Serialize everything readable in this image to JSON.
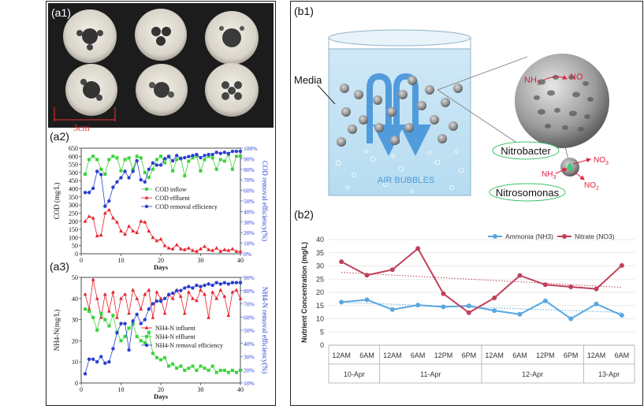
{
  "labels": {
    "a1": "(a1)",
    "a2": "(a2)",
    "a3": "(a3)",
    "b1": "(b1)",
    "b2": "(b2)",
    "scale": "3cm"
  },
  "schematic": {
    "media": "Media",
    "air_bubbles": "AIR BUBBLES",
    "nh3": "NH",
    "nh3_sub": "3",
    "no_big": "NO",
    "nitrobacter": "Nitrobacter",
    "nitrosomonas": "Nitrosomonas",
    "nh3_small": "NH",
    "nh3_small_sub": "3",
    "no3": "NO",
    "no3_sub": "3",
    "no2": "NO",
    "no2_sub": "2"
  },
  "chart_data": [
    {
      "id": "a2",
      "type": "line",
      "xlabel": "Days",
      "ylabel": "COD (mg/L)",
      "y2label": "COD removal efficiency(%)",
      "xlim": [
        0,
        40
      ],
      "ylim": [
        0,
        650
      ],
      "y2lim": [
        0,
        100
      ],
      "xticks": [
        "0",
        "10",
        "20",
        "30",
        "40"
      ],
      "yticks": [
        "0",
        "50",
        "100",
        "150",
        "200",
        "250",
        "300",
        "350",
        "400",
        "450",
        "500",
        "550",
        "600",
        "650"
      ],
      "y2ticks": [
        "0%",
        "10%",
        "20%",
        "30%",
        "40%",
        "50%",
        "60%",
        "70%",
        "80%",
        "90%",
        "100%"
      ],
      "legend": "center",
      "series": [
        {
          "name": "COD inflow",
          "axis": "left",
          "color": "#39d339",
          "marker": "square",
          "x": [
            1,
            2,
            3,
            4,
            5,
            6,
            7,
            8,
            9,
            10,
            11,
            12,
            13,
            14,
            15,
            16,
            17,
            18,
            19,
            20,
            21,
            22,
            23,
            24,
            25,
            26,
            27,
            28,
            29,
            30,
            31,
            32,
            33,
            34,
            35,
            36,
            37,
            38,
            39,
            40
          ],
          "y": [
            490,
            580,
            600,
            580,
            520,
            490,
            580,
            600,
            590,
            510,
            580,
            590,
            520,
            600,
            590,
            500,
            470,
            520,
            580,
            600,
            560,
            600,
            510,
            580,
            590,
            480,
            570,
            590,
            600,
            510,
            580,
            600,
            590,
            520,
            580,
            570,
            610,
            520,
            600,
            600
          ]
        },
        {
          "name": "COD effluent",
          "axis": "left",
          "color": "#e8212b",
          "marker": "triangle",
          "x": [
            1,
            2,
            3,
            4,
            5,
            6,
            7,
            8,
            9,
            10,
            11,
            12,
            13,
            14,
            15,
            16,
            17,
            18,
            19,
            20,
            21,
            22,
            23,
            24,
            25,
            26,
            27,
            28,
            29,
            30,
            31,
            32,
            33,
            34,
            35,
            36,
            37,
            38,
            39,
            40
          ],
          "y": [
            200,
            230,
            220,
            110,
            115,
            250,
            270,
            220,
            195,
            140,
            120,
            170,
            140,
            130,
            200,
            195,
            140,
            100,
            80,
            90,
            50,
            35,
            30,
            55,
            30,
            25,
            35,
            20,
            15,
            30,
            45,
            25,
            20,
            35,
            15,
            25,
            20,
            30,
            15,
            15
          ]
        },
        {
          "name": "COD removal efficiency",
          "axis": "right",
          "color": "#2a3fd1",
          "marker": "circle",
          "x": [
            1,
            2,
            3,
            4,
            5,
            6,
            7,
            8,
            9,
            10,
            11,
            12,
            13,
            14,
            15,
            16,
            17,
            18,
            19,
            20,
            21,
            22,
            23,
            24,
            25,
            26,
            27,
            28,
            29,
            30,
            31,
            32,
            33,
            34,
            35,
            36,
            37,
            38,
            39,
            40
          ],
          "y": [
            58,
            58,
            62,
            78,
            75,
            45,
            50,
            63,
            68,
            72,
            78,
            72,
            78,
            88,
            70,
            68,
            80,
            86,
            84,
            84,
            90,
            92,
            88,
            93,
            90,
            91,
            92,
            93,
            94,
            91,
            93,
            94,
            94,
            96,
            95,
            96,
            95,
            97,
            97,
            97
          ]
        }
      ]
    },
    {
      "id": "a3",
      "type": "line",
      "xlabel": "Days",
      "ylabel": "NH4-N(mg/L)",
      "y2label": "NH4-N removal efficiency(%)",
      "xlim": [
        0,
        40
      ],
      "ylim": [
        0,
        50
      ],
      "y2lim": [
        10,
        90
      ],
      "xticks": [
        "0",
        "10",
        "20",
        "30",
        "40"
      ],
      "yticks": [
        "0",
        "10",
        "20",
        "30",
        "40",
        "50"
      ],
      "y2ticks": [
        "10%",
        "20%",
        "30%",
        "40%",
        "50%",
        "60%",
        "70%",
        "80%",
        "90%"
      ],
      "legend": "center",
      "series": [
        {
          "name": "NH4-N influent",
          "axis": "left",
          "color": "#e8212b",
          "marker": "triangle",
          "x": [
            1,
            2,
            3,
            4,
            5,
            6,
            7,
            8,
            9,
            10,
            11,
            12,
            13,
            14,
            15,
            16,
            17,
            18,
            19,
            20,
            21,
            22,
            23,
            24,
            25,
            26,
            27,
            28,
            29,
            30,
            31,
            32,
            33,
            34,
            35,
            36,
            37,
            38,
            39,
            40
          ],
          "y": [
            42,
            35,
            49,
            40,
            31,
            42,
            34,
            43,
            31,
            40,
            42,
            33,
            44,
            40,
            35,
            42,
            44,
            31,
            43,
            40,
            33,
            42,
            40,
            44,
            41,
            33,
            43,
            40,
            39,
            44,
            42,
            31,
            43,
            40,
            44,
            41,
            32,
            43,
            44,
            40
          ]
        },
        {
          "name": "NH4-N effluent",
          "axis": "left",
          "color": "#39d339",
          "marker": "square",
          "x": [
            1,
            2,
            3,
            4,
            5,
            6,
            7,
            8,
            9,
            10,
            11,
            12,
            13,
            14,
            15,
            16,
            17,
            18,
            19,
            20,
            21,
            22,
            23,
            24,
            25,
            26,
            27,
            28,
            29,
            30,
            31,
            32,
            33,
            34,
            35,
            36,
            37,
            38,
            39,
            40
          ],
          "y": [
            35,
            34,
            31,
            25,
            33,
            30,
            27,
            32,
            24,
            20,
            22,
            26,
            28,
            22,
            20,
            19,
            24,
            14,
            12,
            11,
            12,
            8,
            9,
            7,
            8,
            6,
            7,
            8,
            6,
            8,
            7,
            6,
            8,
            5,
            6,
            6,
            5,
            6,
            5,
            6
          ]
        },
        {
          "name": "NH4-N removal efficiency",
          "axis": "right",
          "color": "#2a3fd1",
          "marker": "circle",
          "x": [
            1,
            2,
            3,
            4,
            5,
            6,
            7,
            8,
            9,
            10,
            11,
            12,
            13,
            14,
            15,
            16,
            17,
            18,
            19,
            20,
            21,
            22,
            23,
            24,
            25,
            26,
            27,
            28,
            29,
            30,
            31,
            32,
            33,
            34,
            35,
            36,
            37,
            38,
            39,
            40
          ],
          "y": [
            17,
            28,
            28,
            26,
            30,
            25,
            26,
            36,
            48,
            55,
            55,
            35,
            57,
            62,
            55,
            58,
            66,
            70,
            72,
            72,
            74,
            77,
            78,
            80,
            80,
            82,
            83,
            82,
            84,
            83,
            84,
            85,
            84,
            86,
            85,
            86,
            85,
            86,
            86,
            86
          ]
        }
      ]
    },
    {
      "id": "b2",
      "type": "line",
      "ylabel": "Nutrient Concentration (mg/L)",
      "ylim": [
        0,
        40
      ],
      "yticks": [
        "0",
        "5",
        "10",
        "15",
        "20",
        "25",
        "30",
        "35",
        "40"
      ],
      "categories": [
        "12AM",
        "6AM",
        "12AM",
        "6AM",
        "12PM",
        "6PM",
        "12AM",
        "6AM",
        "12PM",
        "6PM",
        "12AM",
        "6AM"
      ],
      "groups": [
        {
          "label": "10-Apr",
          "start": 0,
          "end": 1
        },
        {
          "label": "11-Apr",
          "start": 2,
          "end": 5
        },
        {
          "label": "12-Apr",
          "start": 6,
          "end": 9
        },
        {
          "label": "13-Apr",
          "start": 10,
          "end": 11
        }
      ],
      "legend": "top",
      "series": [
        {
          "name": "Ammonia (NH3)",
          "color": "#5aa7e0",
          "values": [
            16.3,
            17.2,
            13.5,
            15.2,
            14.5,
            14.9,
            13.1,
            11.7,
            16.8,
            10.0,
            15.6,
            11.3
          ],
          "trend": [
            16.2,
            12.4
          ]
        },
        {
          "name": "Nitrate (NO3)",
          "color": "#c0405a",
          "values": [
            31.6,
            26.5,
            28.6,
            36.6,
            19.5,
            12.3,
            17.9,
            26.4,
            22.9,
            22.1,
            21.3,
            30.2
          ],
          "trend": [
            27.6,
            21.9
          ]
        }
      ]
    }
  ]
}
